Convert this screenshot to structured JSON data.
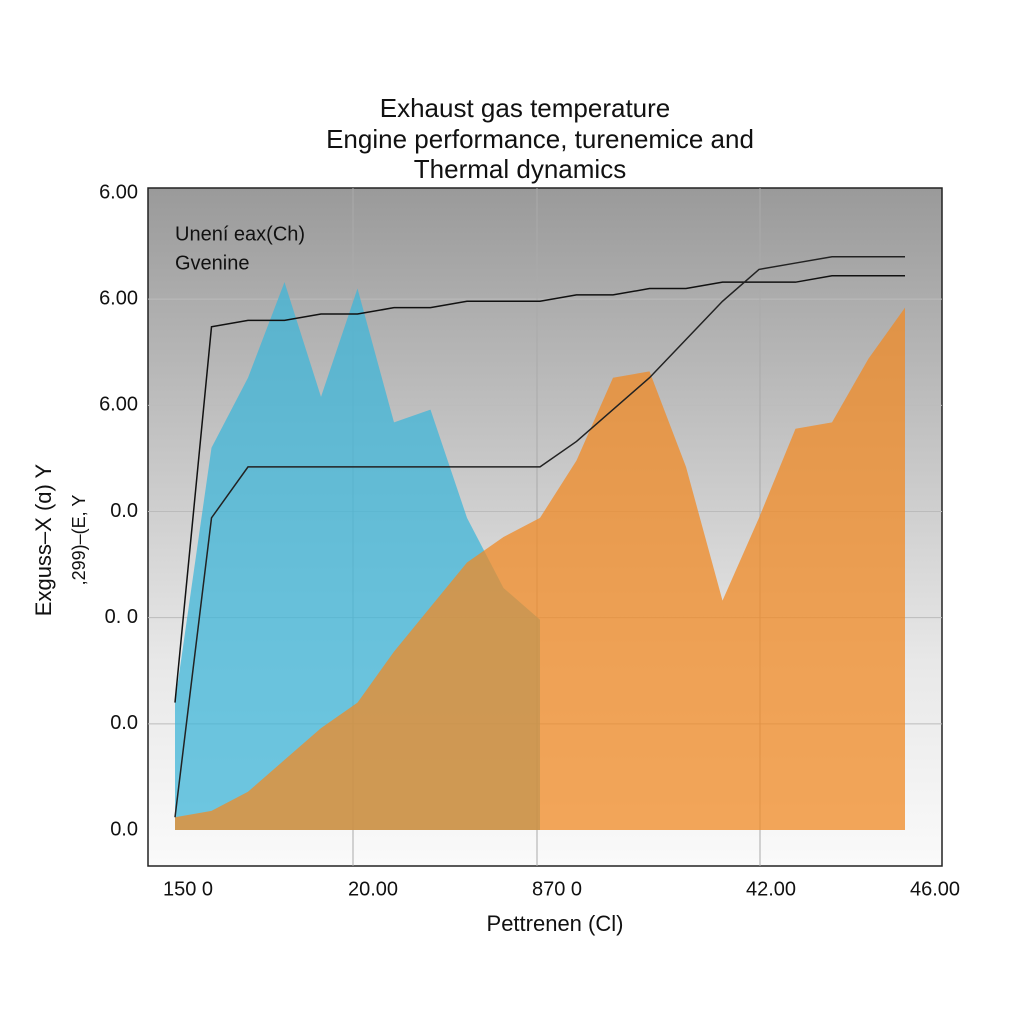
{
  "chart_data": {
    "type": "area",
    "title": [
      "Exhaust gas temperature",
      "Engine performance, turenemice and",
      "Thermal dynamics"
    ],
    "y_label": [
      "Exguss–X (ɑ) Y",
      ",299)–(E, Y"
    ],
    "x_label": "Pettrenen (Cl)",
    "y_axis_labels": [
      "6.00",
      "6.00",
      "6.00",
      "0.0",
      "0. 0",
      "0.0",
      "0.0"
    ],
    "x_axis_labels": [
      "150 0",
      "20.00",
      "870 0",
      "42.00",
      "46.00"
    ],
    "xlim": [
      0,
      100
    ],
    "ylim": [
      0,
      100
    ],
    "x": [
      0,
      5,
      10,
      15,
      20,
      25,
      30,
      35,
      40,
      45,
      50,
      55,
      60,
      65,
      70,
      75,
      80,
      85,
      90,
      95,
      100
    ],
    "areas": [
      {
        "color": "#3fb6d8",
        "values": [
          20,
          60,
          71,
          86,
          68,
          85,
          64,
          66,
          49,
          38,
          33,
          null,
          null,
          null,
          null,
          null,
          null,
          null,
          null,
          null,
          null
        ]
      },
      {
        "color": "#f08a24",
        "values": [
          2,
          3,
          6,
          11,
          16,
          20,
          28,
          35,
          42,
          46,
          49,
          58,
          71,
          72,
          57,
          36,
          49,
          63,
          64,
          74,
          82
        ]
      }
    ],
    "series": [
      {
        "name": "Unení eax(Ch)",
        "color": "#111111",
        "values": [
          20,
          79,
          80,
          80,
          81,
          81,
          82,
          82,
          83,
          83,
          83,
          84,
          84,
          85,
          85,
          86,
          86,
          86,
          87,
          87,
          87
        ]
      },
      {
        "name": "Gvenine",
        "color": "#222222",
        "values": [
          2,
          49,
          57,
          57,
          57,
          57,
          57,
          57,
          57,
          57,
          57,
          61,
          66,
          71,
          77,
          83,
          88,
          89,
          90,
          90,
          90
        ]
      }
    ],
    "grid": true
  }
}
